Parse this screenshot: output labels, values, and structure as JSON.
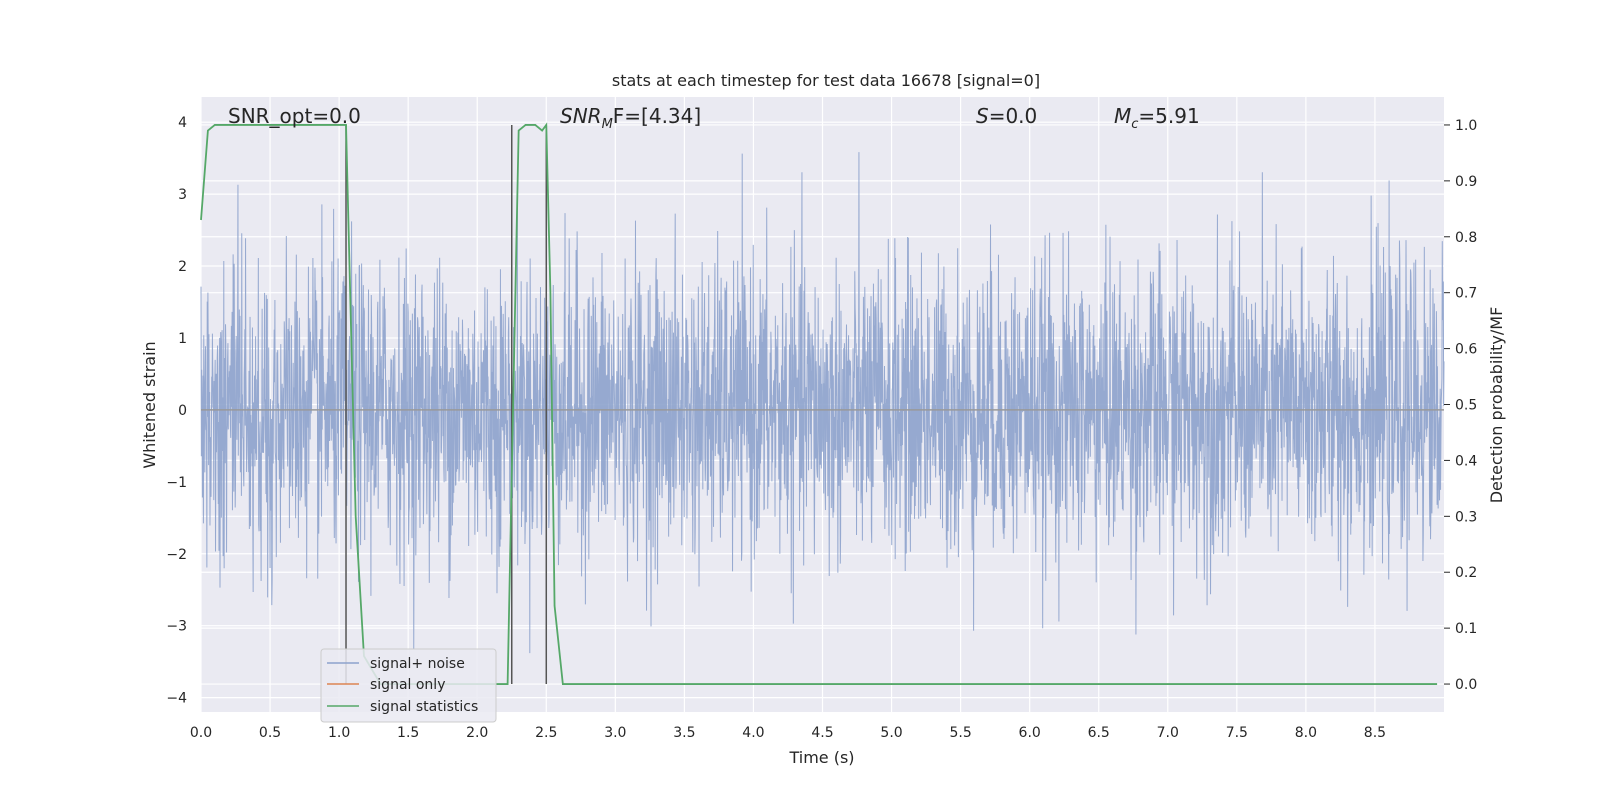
{
  "chart_data": {
    "type": "line",
    "title": "stats at each timestep for test data 16678 [signal=0]",
    "xlabel": "Time (s)",
    "ylabel": "Whitened strain",
    "ylabel_right": "Detection probability/MF",
    "xlim": [
      0.0,
      9.0
    ],
    "ylim": [
      -4.2,
      4.35
    ],
    "ylim_right": [
      -0.05,
      1.05
    ],
    "x_ticks": [
      "0.0",
      "0.5",
      "1.0",
      "1.5",
      "2.0",
      "2.5",
      "3.0",
      "3.5",
      "4.0",
      "4.5",
      "5.0",
      "5.5",
      "6.0",
      "6.5",
      "7.0",
      "7.5",
      "8.0",
      "8.5"
    ],
    "y_ticks": [
      "4",
      "3",
      "2",
      "1",
      "0",
      "−1",
      "−2",
      "−3",
      "−4"
    ],
    "y_right_ticks": [
      "1.0",
      "0.9",
      "0.8",
      "0.7",
      "0.6",
      "0.5",
      "0.4",
      "0.3",
      "0.2",
      "0.1",
      "0.0"
    ],
    "annotations": {
      "snr_opt": "SNR_opt=0.0",
      "snr_mf_main": "SNR",
      "snr_mf_sub": "M",
      "snr_mf_tail": "F=[4.34]",
      "s_var": "S",
      "s_tail": "=0.0",
      "mc_var": "M",
      "mc_sub": "c",
      "mc_tail": "=5.91"
    },
    "legend": {
      "placement": "lower-left",
      "entries": [
        "signal+ noise",
        "signal only",
        "signal statistics"
      ]
    },
    "colors": {
      "signal_noise": "#8da2cc",
      "signal_only": "#dd8452",
      "statistics": "#55a868",
      "markers": "#555555",
      "background": "#eaeaf2",
      "grid": "#ffffff"
    },
    "series": [
      {
        "name": "signal statistics",
        "axis": "right",
        "x": [
          0.0,
          0.05,
          0.1,
          0.2,
          0.5,
          0.8,
          1.0,
          1.05,
          1.08,
          1.12,
          1.18,
          1.3,
          1.6,
          2.0,
          2.22,
          2.26,
          2.3,
          2.35,
          2.42,
          2.47,
          2.5,
          2.53,
          2.56,
          2.62,
          3.0,
          4.0,
          5.0,
          6.0,
          7.0,
          8.0,
          8.95
        ],
        "values": [
          0.83,
          0.99,
          1.0,
          1.0,
          1.0,
          1.0,
          1.0,
          1.0,
          0.7,
          0.3,
          0.05,
          0.0,
          0.0,
          0.0,
          0.0,
          0.5,
          0.99,
          1.0,
          1.0,
          0.99,
          1.0,
          0.7,
          0.14,
          0.0,
          0.0,
          0.0,
          0.0,
          0.0,
          0.0,
          0.0,
          0.0
        ]
      },
      {
        "name": "signal only",
        "axis": "left",
        "x": [
          0.0,
          9.0
        ],
        "values": [
          0.0,
          0.0
        ]
      },
      {
        "name": "signal+ noise",
        "axis": "left",
        "description_type": "dense whitened strain time series (approx. gaussian, sigma ~1)",
        "x": [
          0.0,
          9.0
        ],
        "values": [
          0.0,
          0.0
        ]
      }
    ],
    "vertical_markers_x": [
      1.05,
      2.25,
      2.5
    ]
  }
}
